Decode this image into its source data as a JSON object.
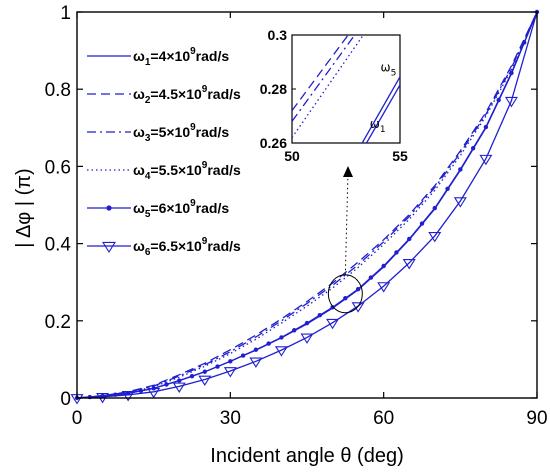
{
  "chart_data": {
    "type": "line",
    "xlabel": "Incident angle θ (deg)",
    "ylabel": "| Δφ |  (π)",
    "xlim": [
      0,
      90
    ],
    "ylim": [
      0,
      1
    ],
    "xticks": [
      0,
      30,
      60,
      90
    ],
    "yticks": [
      0,
      0.2,
      0.4,
      0.6,
      0.8,
      1
    ],
    "xtick_labels": [
      "0",
      "30",
      "60",
      "90"
    ],
    "ytick_labels": [
      "0",
      "0.2",
      "0.4",
      "0.6",
      "0.8",
      "1"
    ],
    "color": "#1f1fd0",
    "grid": false,
    "legend_position": "top-left",
    "x": [
      0,
      5,
      10,
      15,
      20,
      25,
      30,
      35,
      40,
      45,
      50,
      55,
      60,
      65,
      70,
      75,
      80,
      85,
      90
    ],
    "series": [
      {
        "name": "ω1=4×10⁹rad/s",
        "label_base": "ω",
        "label_sub": "1",
        "label_eq": "=4×10",
        "label_sup": "9",
        "label_unit": "rad/s",
        "style": "solid",
        "marker": "none",
        "values": [
          0,
          0.005,
          0.012,
          0.025,
          0.045,
          0.068,
          0.095,
          0.124,
          0.156,
          0.192,
          0.233,
          0.28,
          0.34,
          0.41,
          0.49,
          0.59,
          0.7,
          0.84,
          1.0
        ]
      },
      {
        "name": "ω2=4.5×10⁹rad/s",
        "label_base": "ω",
        "label_sub": "2",
        "label_eq": "=4.5×10",
        "label_sup": "9",
        "label_unit": "rad/s",
        "style": "dashed",
        "marker": "none",
        "values": [
          0,
          0.006,
          0.016,
          0.033,
          0.06,
          0.09,
          0.125,
          0.163,
          0.205,
          0.25,
          0.298,
          0.352,
          0.41,
          0.475,
          0.55,
          0.64,
          0.74,
          0.86,
          1.0
        ]
      },
      {
        "name": "ω3=5×10⁹rad/s",
        "label_base": "ω",
        "label_sub": "3",
        "label_eq": "=5×10",
        "label_sup": "9",
        "label_unit": "rad/s",
        "style": "dashdot",
        "marker": "none",
        "values": [
          0,
          0.006,
          0.015,
          0.031,
          0.057,
          0.086,
          0.12,
          0.158,
          0.2,
          0.245,
          0.292,
          0.345,
          0.405,
          0.47,
          0.545,
          0.635,
          0.735,
          0.855,
          1.0
        ]
      },
      {
        "name": "ω4=5.5×10⁹rad/s",
        "label_base": "ω",
        "label_sub": "4",
        "label_eq": "=5.5×10",
        "label_sup": "9",
        "label_unit": "rad/s",
        "style": "dotted",
        "marker": "none",
        "values": [
          0,
          0.006,
          0.014,
          0.029,
          0.054,
          0.082,
          0.115,
          0.152,
          0.194,
          0.238,
          0.285,
          0.338,
          0.398,
          0.463,
          0.538,
          0.628,
          0.73,
          0.85,
          1.0
        ]
      },
      {
        "name": "ω5=6×10⁹rad/s",
        "label_base": "ω",
        "label_sub": "5",
        "label_eq": "=6×10",
        "label_sup": "9",
        "label_unit": "rad/s",
        "style": "solid",
        "marker": "dot",
        "values": [
          0,
          0.005,
          0.012,
          0.025,
          0.045,
          0.068,
          0.095,
          0.125,
          0.157,
          0.194,
          0.235,
          0.282,
          0.342,
          0.412,
          0.492,
          0.592,
          0.702,
          0.842,
          1.0
        ]
      },
      {
        "name": "ω6=6.5×10⁹rad/s",
        "label_base": "ω",
        "label_sub": "6",
        "label_eq": "=6.5×10",
        "label_sup": "9",
        "label_unit": "rad/s",
        "style": "solid",
        "marker": "triangle-down",
        "values": [
          0,
          0.003,
          0.008,
          0.016,
          0.03,
          0.048,
          0.07,
          0.095,
          0.124,
          0.157,
          0.195,
          0.238,
          0.29,
          0.35,
          0.42,
          0.51,
          0.62,
          0.77,
          1.0
        ]
      }
    ],
    "inset": {
      "xlim": [
        50,
        55
      ],
      "ylim": [
        0.26,
        0.3
      ],
      "xticks": [
        50,
        55
      ],
      "yticks": [
        0.26,
        0.28,
        0.3
      ],
      "xtick_labels": [
        "50",
        "55"
      ],
      "ytick_labels": [
        "0.26",
        "0.28",
        "0.3"
      ],
      "annotations": [
        {
          "base": "ω",
          "sub": "5",
          "x": 54.1,
          "y": 0.2865
        },
        {
          "base": "ω",
          "sub": "1",
          "x": 53.6,
          "y": 0.2655
        }
      ],
      "lines": [
        {
          "series": "ω2",
          "style": "dashed",
          "x": [
            50,
            52.6
          ],
          "y": [
            0.272,
            0.3
          ]
        },
        {
          "series": "ω3",
          "style": "dashdot",
          "x": [
            50,
            52.9
          ],
          "y": [
            0.268,
            0.3
          ]
        },
        {
          "series": "ω4",
          "style": "dotted",
          "x": [
            50,
            53.3
          ],
          "y": [
            0.262,
            0.3
          ]
        },
        {
          "series": "ω5",
          "style": "solid",
          "x": [
            53.25,
            55
          ],
          "y": [
            0.26,
            0.2845
          ]
        },
        {
          "series": "ω1",
          "style": "solid",
          "x": [
            53.45,
            55
          ],
          "y": [
            0.26,
            0.2815
          ]
        }
      ]
    },
    "zoom_circle": {
      "x": 52.5,
      "y": 0.27
    }
  }
}
